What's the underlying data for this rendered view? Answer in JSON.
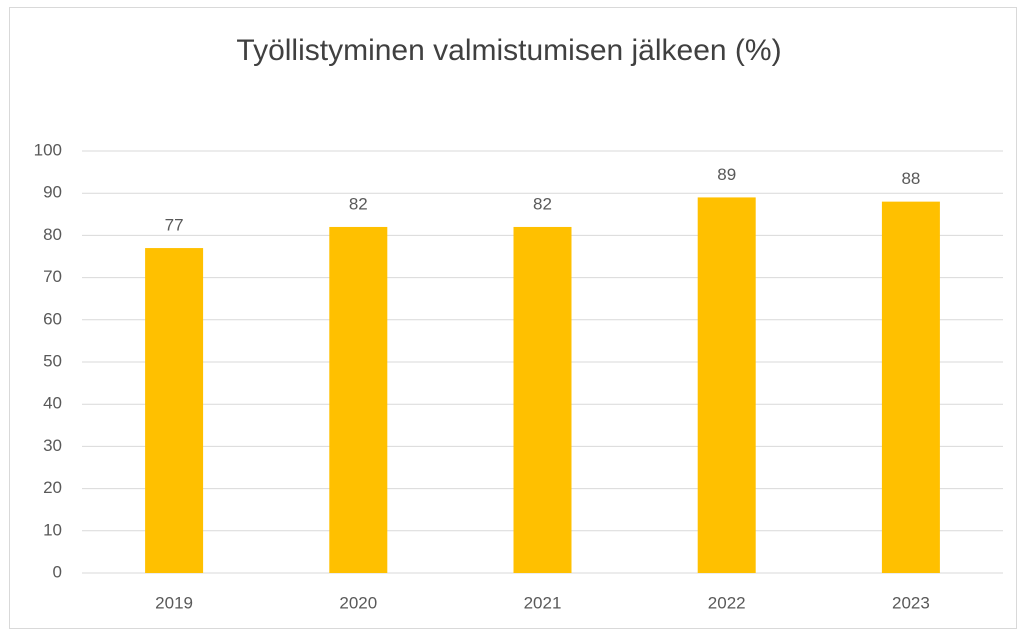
{
  "chart_data": {
    "type": "bar",
    "title": "Työllistyminen valmistumisen jälkeen (%)",
    "categories": [
      "2019",
      "2020",
      "2021",
      "2022",
      "2023"
    ],
    "values": [
      77,
      82,
      82,
      89,
      88
    ],
    "color": "#FFC000",
    "ylim": [
      0,
      100
    ],
    "yticks": [
      0,
      10,
      20,
      30,
      40,
      50,
      60,
      70,
      80,
      90,
      100
    ],
    "grid": true
  }
}
